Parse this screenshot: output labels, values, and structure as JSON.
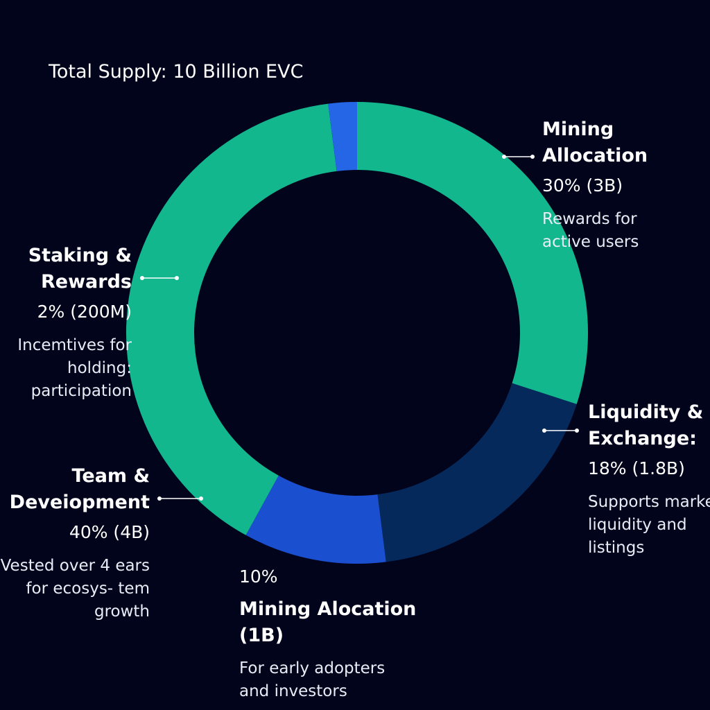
{
  "chart_data": {
    "type": "donut",
    "title": "Total Supply: 10 Billion EVC",
    "categories": [
      "Mining Allocation",
      "Liquidity & Exchange:",
      "Mining Alocation (1B)",
      "Team & Deveiopment",
      "Staking & Rewards"
    ],
    "values": [
      30,
      18,
      10,
      40,
      2
    ],
    "value_labels": [
      "30% (3B)",
      "18% (1.8B)",
      "10%",
      "40% (4B)",
      "2% (200M)"
    ],
    "descriptions": [
      "Rewards for active users",
      "Supports market liquidity and listings",
      "For early adopters and investors",
      "Vested over 4 ears for ecosys- tem growth",
      "Incemtives for holding: participation"
    ],
    "colors": [
      "#13b78e",
      "#06295c",
      "#1a4fd0",
      "#13b78e",
      "#2466e6"
    ]
  }
}
